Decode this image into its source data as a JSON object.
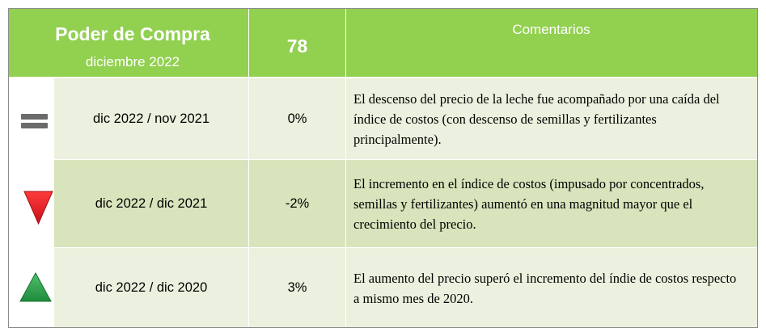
{
  "header": {
    "title": "Poder de Compra",
    "subtitle": "diciembre 2022",
    "score": "78",
    "comments_title": "Comentarios"
  },
  "colors": {
    "header_green": "#92d050",
    "light_row": "#ebf1de",
    "dark_row": "#d8e4bc",
    "neutral_icon": "#6b6b6b",
    "down_icon": "#e0201f",
    "up_icon": "#2ea44f"
  },
  "rows": [
    {
      "icon": "equal-icon",
      "period": "dic 2022 / nov 2021",
      "change": "0%",
      "comment": "El descenso del precio de la leche fue acompañado por una caída del índice de costos (con descenso de semillas y fertilizantes principalmente)."
    },
    {
      "icon": "down-triangle-icon",
      "period": "dic 2022 / dic 2021",
      "change": "-2%",
      "comment": "El incremento en el índice de costos (impusado por concentrados, semillas y fertilizantes) aumentó en una magnitud mayor que el crecimiento del precio."
    },
    {
      "icon": "up-triangle-icon",
      "period": "dic 2022 / dic 2020",
      "change": "3%",
      "comment": "El aumento del precio superó el incremento del índie de costos respecto a mismo mes de 2020."
    }
  ]
}
